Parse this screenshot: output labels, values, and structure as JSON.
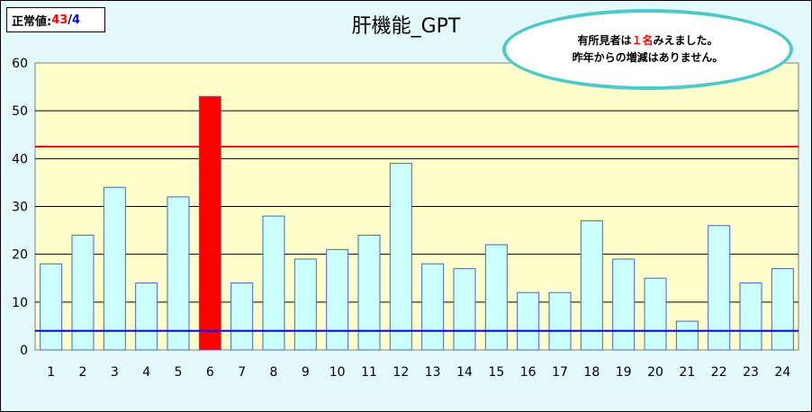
{
  "normal_label": "正常値:",
  "normal_value_a": "43",
  "normal_sep": "/",
  "normal_value_b": "4",
  "colors": {
    "plot_bg": "#ffffcc",
    "bar_fill": "#ccffff",
    "bar_stroke": "#4466cc",
    "highlight_bar": "#ff0000",
    "upper_line": "#ff0000",
    "lower_line": "#0000ff",
    "note_border": "#4ec9c9",
    "accent_red": "#ff0000",
    "accent_blue": "#0000cc"
  },
  "note": {
    "line1_a": "有所見者は",
    "line1_num": "１名",
    "line1_b": "みえました。",
    "line2": "昨年からの増減はありません。"
  },
  "chart_data": {
    "type": "bar",
    "title": "肝機能_GPT",
    "categories": [
      "1",
      "2",
      "3",
      "4",
      "5",
      "6",
      "7",
      "8",
      "9",
      "10",
      "11",
      "12",
      "13",
      "14",
      "15",
      "16",
      "17",
      "18",
      "19",
      "20",
      "21",
      "22",
      "23",
      "24"
    ],
    "values": [
      18,
      24,
      34,
      14,
      32,
      53,
      14,
      28,
      19,
      21,
      24,
      39,
      18,
      17,
      22,
      12,
      12,
      27,
      19,
      15,
      6,
      26,
      14,
      17
    ],
    "highlight_index": 5,
    "ylim": [
      0,
      60
    ],
    "yticks": [
      0,
      10,
      20,
      30,
      40,
      50,
      60
    ],
    "reference_lines": [
      {
        "value": 42.5,
        "color": "#ff0000"
      },
      {
        "value": 4,
        "color": "#0000ff"
      }
    ],
    "grid": true,
    "xlabel": "",
    "ylabel": ""
  }
}
